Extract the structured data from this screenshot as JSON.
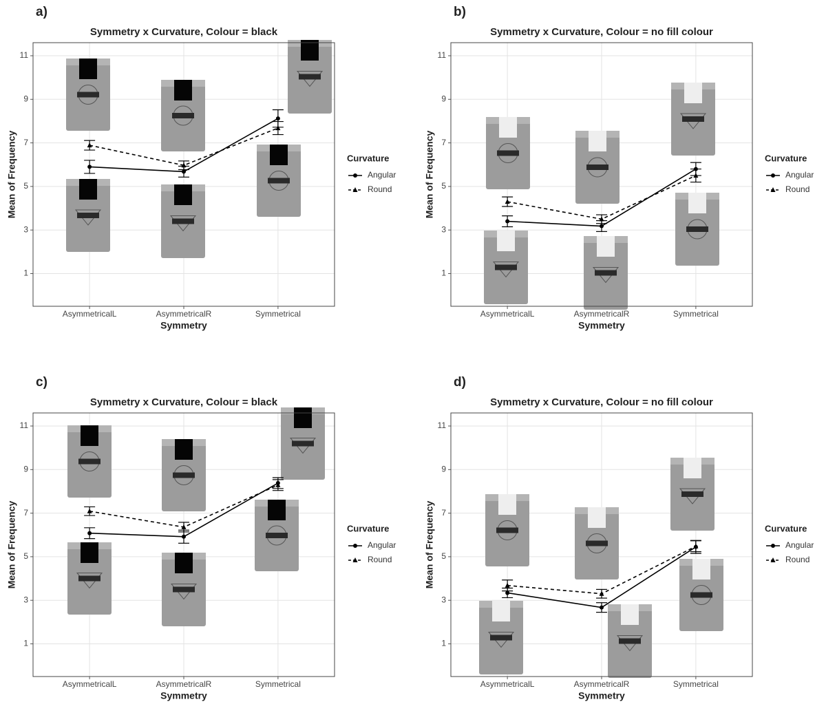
{
  "chart_data": [
    {
      "type": "line",
      "panel_label": "a)",
      "title": "Symmetry x Curvature, Colour = black",
      "x_label": "Symmetry",
      "y_label": "Mean of Frequency",
      "categories": [
        "AsymmetricalL",
        "AsymmetricalR",
        "Symmetrical"
      ],
      "ylim": [
        -0.5,
        11.6
      ],
      "yticks": [
        1,
        3,
        5,
        7,
        9,
        11
      ],
      "grid": true,
      "legend_title": "Curvature",
      "series": [
        {
          "name": "Angular",
          "color": "#000000",
          "linestyle": "solid",
          "marker": "circle",
          "values": [
            5.9,
            5.68,
            8.12
          ],
          "errors": [
            0.3,
            0.25,
            0.4
          ]
        },
        {
          "name": "Round",
          "color": "#000000",
          "linestyle": "dashed",
          "marker": "triangle",
          "values": [
            6.89,
            5.97,
            7.68
          ],
          "errors": [
            0.22,
            0.2,
            0.3
          ]
        }
      ]
    },
    {
      "type": "line",
      "panel_label": "b)",
      "title": "Symmetry x Curvature, Colour = no fill colour",
      "x_label": "Symmetry",
      "y_label": "Mean of Frequency",
      "categories": [
        "AsymmetricalL",
        "AsymmetricalR",
        "Symmetrical"
      ],
      "ylim": [
        -0.5,
        11.6
      ],
      "yticks": [
        1,
        3,
        5,
        7,
        9,
        11
      ],
      "grid": true,
      "legend_title": "Curvature",
      "series": [
        {
          "name": "Angular",
          "color": "#000000",
          "linestyle": "solid",
          "marker": "circle",
          "values": [
            3.4,
            3.18,
            5.8
          ],
          "errors": [
            0.25,
            0.25,
            0.3
          ]
        },
        {
          "name": "Round",
          "color": "#000000",
          "linestyle": "dashed",
          "marker": "triangle",
          "values": [
            4.3,
            3.5,
            5.5
          ],
          "errors": [
            0.22,
            0.2,
            0.3
          ]
        }
      ]
    },
    {
      "type": "line",
      "panel_label": "c)",
      "title": "Symmetry x Curvature, Colour = black",
      "x_label": "Symmetry",
      "y_label": "Mean of Frequency",
      "categories": [
        "AsymmetricalL",
        "AsymmetricalR",
        "Symmetrical"
      ],
      "ylim": [
        -0.5,
        11.6
      ],
      "yticks": [
        1,
        3,
        5,
        7,
        9,
        11
      ],
      "grid": true,
      "legend_title": "Curvature",
      "series": [
        {
          "name": "Angular",
          "color": "#000000",
          "linestyle": "solid",
          "marker": "circle",
          "values": [
            6.08,
            5.92,
            8.38
          ],
          "errors": [
            0.25,
            0.3,
            0.25
          ]
        },
        {
          "name": "Round",
          "color": "#000000",
          "linestyle": "dashed",
          "marker": "triangle",
          "values": [
            7.09,
            6.36,
            8.29
          ],
          "errors": [
            0.2,
            0.22,
            0.25
          ]
        }
      ]
    },
    {
      "type": "line",
      "panel_label": "d)",
      "title": "Symmetry x Curvature, Colour = no fill colour",
      "x_label": "Symmetry",
      "y_label": "Mean of Frequency",
      "categories": [
        "AsymmetricalL",
        "AsymmetricalR",
        "Symmetrical"
      ],
      "ylim": [
        -0.5,
        11.6
      ],
      "yticks": [
        1,
        3,
        5,
        7,
        9,
        11
      ],
      "grid": true,
      "legend_title": "Curvature",
      "series": [
        {
          "name": "Angular",
          "color": "#000000",
          "linestyle": "solid",
          "marker": "circle",
          "values": [
            3.34,
            2.67,
            5.45
          ],
          "errors": [
            0.22,
            0.22,
            0.3
          ]
        },
        {
          "name": "Round",
          "color": "#000000",
          "linestyle": "dashed",
          "marker": "triangle",
          "values": [
            3.68,
            3.3,
            5.48
          ],
          "errors": [
            0.25,
            0.2,
            0.25
          ]
        }
      ]
    }
  ]
}
